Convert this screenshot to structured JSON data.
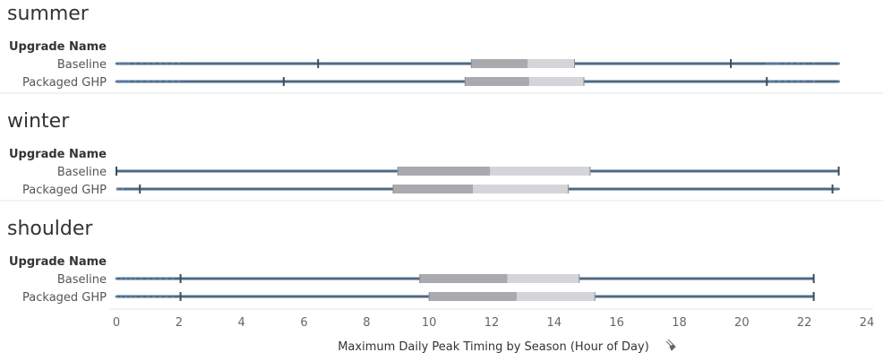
{
  "chart_data": {
    "type": "box",
    "xlabel": "Maximum Daily Peak Timing by Season (Hour of Day)",
    "row_header": "Upgrade Name",
    "xlim": [
      0,
      24
    ],
    "xticks": [
      0,
      2,
      4,
      6,
      8,
      10,
      12,
      14,
      16,
      18,
      20,
      22,
      24
    ],
    "colors": {
      "line": "#4e6a82",
      "box_lower": "#a9aaae",
      "box_upper": "#d4d5d8",
      "outlier": "#5b7fa8",
      "tick": "#666666",
      "separator": "#e6e6e6"
    },
    "panels": [
      {
        "name": "summer",
        "rows": [
          {
            "name": "Baseline",
            "min": 0.0,
            "whisker_low": 6.45,
            "q1": 11.35,
            "median": 13.15,
            "q3": 14.65,
            "whisker_high": 19.65,
            "max": 23.1,
            "outliers_low": [
              0,
              0.1,
              0.2,
              0.3,
              0.4,
              0.6,
              0.8,
              1.0,
              1.2,
              1.4,
              1.6,
              1.8,
              2.0
            ],
            "outliers_high": [
              20.8,
              20.9,
              21.0,
              21.1,
              21.2,
              21.4,
              21.6,
              21.8,
              22.0,
              22.3,
              23.1
            ]
          },
          {
            "name": "Packaged GHP",
            "min": 0.0,
            "whisker_low": 5.35,
            "q1": 11.15,
            "median": 13.2,
            "q3": 14.95,
            "whisker_high": 20.8,
            "max": 23.1,
            "outliers_low": [
              0,
              0.1,
              0.2,
              0.3,
              0.4,
              0.6,
              0.8,
              1.0,
              1.2,
              1.4,
              1.6,
              1.8,
              2.0
            ],
            "outliers_high": [
              20.9,
              21.0,
              21.2,
              21.4,
              21.6,
              21.8,
              22.0,
              22.3,
              23.1
            ]
          }
        ]
      },
      {
        "name": "winter",
        "rows": [
          {
            "name": "Baseline",
            "min": 0.0,
            "whisker_low": 0.0,
            "q1": 9.0,
            "median": 11.95,
            "q3": 15.15,
            "whisker_high": 23.1,
            "max": 23.1,
            "outliers_low": [],
            "outliers_high": []
          },
          {
            "name": "Packaged GHP",
            "min": 0.0,
            "whisker_low": 0.75,
            "q1": 8.85,
            "median": 11.4,
            "q3": 14.45,
            "whisker_high": 22.9,
            "max": 23.1,
            "outliers_low": [
              0.05,
              0.2
            ],
            "outliers_high": [
              23.0,
              23.1
            ]
          }
        ]
      },
      {
        "name": "shoulder",
        "rows": [
          {
            "name": "Baseline",
            "min": 0.0,
            "whisker_low": 2.05,
            "q1": 9.7,
            "median": 12.5,
            "q3": 14.8,
            "whisker_high": 22.3,
            "max": 22.3,
            "outliers_low": [
              0,
              0.15,
              0.3,
              0.45,
              0.6,
              0.8,
              1.0,
              1.2,
              1.4,
              1.6,
              1.8
            ],
            "outliers_high": []
          },
          {
            "name": "Packaged GHP",
            "min": 0.0,
            "whisker_low": 2.05,
            "q1": 10.0,
            "median": 12.8,
            "q3": 15.3,
            "whisker_high": 22.3,
            "max": 22.3,
            "outliers_low": [
              0,
              0.15,
              0.3,
              0.45,
              0.6,
              0.8,
              1.0,
              1.2,
              1.4,
              1.6,
              1.8
            ],
            "outliers_high": []
          }
        ]
      }
    ]
  },
  "axis": {
    "pin_icon": "pin-icon"
  }
}
